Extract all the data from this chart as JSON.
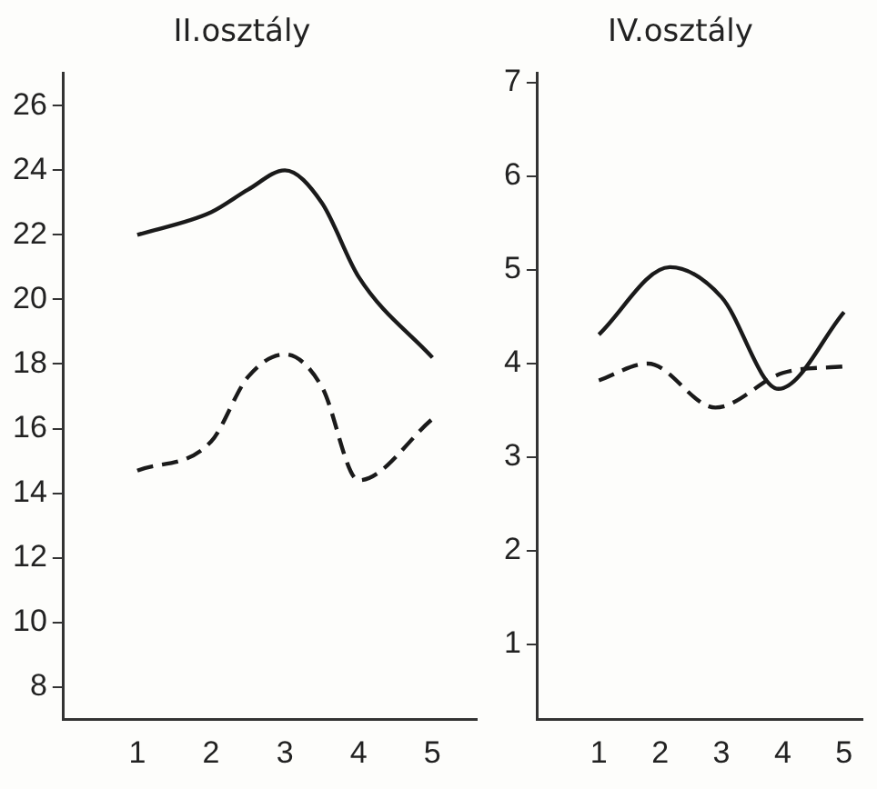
{
  "chart_data": [
    {
      "type": "line",
      "title": "II.osztály",
      "xlim": [
        0,
        5.6
      ],
      "xticks": [
        1,
        2,
        3,
        4,
        5
      ],
      "ylim": [
        7,
        27
      ],
      "yticks": [
        8,
        10,
        12,
        14,
        16,
        18,
        20,
        22,
        24,
        26
      ],
      "grid": false,
      "legend": false,
      "marker": "none",
      "series": [
        {
          "color": "#1a1a1a",
          "line_style": "solid",
          "x": [
            1,
            2,
            2.5,
            3,
            3.5,
            4,
            5
          ],
          "values": [
            22.0,
            22.7,
            23.4,
            24.0,
            23.0,
            20.7,
            18.2
          ]
        },
        {
          "color": "#1a1a1a",
          "line_style": "dashed",
          "x": [
            1,
            2,
            2.5,
            3,
            3.5,
            4,
            5
          ],
          "values": [
            14.7,
            15.6,
            17.6,
            18.3,
            17.3,
            14.4,
            16.3
          ]
        }
      ]
    },
    {
      "type": "line",
      "title": "IV.osztály",
      "xlim": [
        0,
        5.3
      ],
      "xticks": [
        1,
        2,
        3,
        4,
        5
      ],
      "ylim": [
        0.2,
        7.1
      ],
      "yticks": [
        1,
        2,
        3,
        4,
        5,
        6,
        7
      ],
      "grid": false,
      "legend": false,
      "marker": "none",
      "series": [
        {
          "color": "#1a1a1a",
          "line_style": "solid",
          "x": [
            1,
            2.16,
            3,
            3.93,
            5
          ],
          "values": [
            4.31,
            5.03,
            4.71,
            3.73,
            4.55
          ]
        },
        {
          "color": "#1a1a1a",
          "line_style": "dashed",
          "x": [
            1,
            1.8,
            2.9,
            4,
            5
          ],
          "values": [
            3.82,
            4.0,
            3.53,
            3.9,
            3.97
          ]
        }
      ]
    }
  ]
}
